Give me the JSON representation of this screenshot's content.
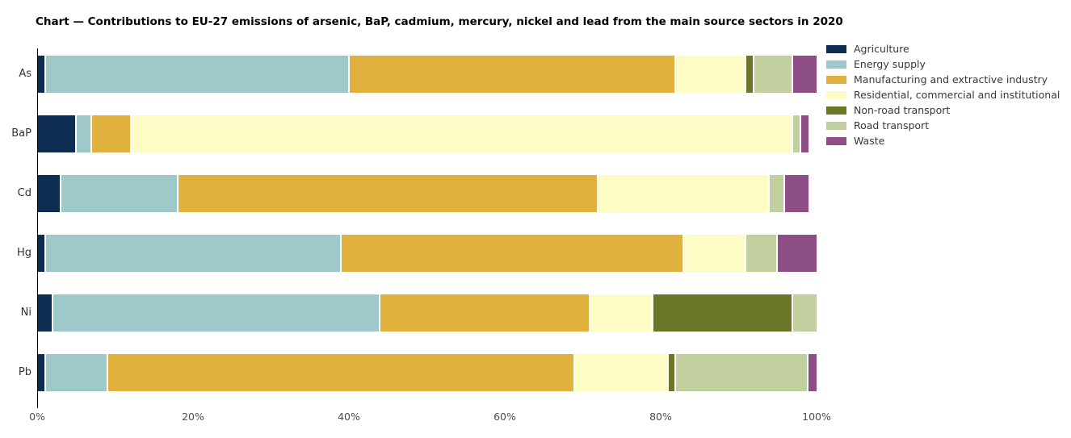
{
  "chart_data": {
    "type": "bar",
    "orientation": "horizontal",
    "stacked": true,
    "title": "Chart — Contributions to EU-27 emissions of arsenic, BaP, cadmium, mercury, nickel and lead from the main source sectors in 2020",
    "categories": [
      "As",
      "BaP",
      "Cd",
      "Hg",
      "Ni",
      "Pb"
    ],
    "unit": "percent",
    "xlim": [
      0,
      100
    ],
    "x_ticks": [
      "0%",
      "20%",
      "40%",
      "60%",
      "80%",
      "100%"
    ],
    "grid": false,
    "legend_position": "top-right",
    "axis_color": "#000000",
    "series": [
      {
        "name": "Agriculture",
        "color": "#0d2e52",
        "values": [
          1,
          5,
          3,
          1,
          2,
          1
        ]
      },
      {
        "name": "Energy supply",
        "color": "#9fc8ca",
        "values": [
          39,
          2,
          15,
          38,
          42,
          8
        ]
      },
      {
        "name": "Manufacturing and extractive industry",
        "color": "#e0b23d",
        "values": [
          42,
          5,
          54,
          44,
          27,
          60
        ]
      },
      {
        "name": "Residential, commercial and institutional",
        "color": "#fdfcc5",
        "values": [
          9,
          85,
          22,
          8,
          8,
          12
        ]
      },
      {
        "name": "Non-road transport",
        "color": "#6b7626",
        "values": [
          1,
          0,
          0,
          0,
          18,
          1
        ]
      },
      {
        "name": "Road transport",
        "color": "#c1d09e",
        "values": [
          5,
          1,
          2,
          4,
          3,
          17
        ]
      },
      {
        "name": "Waste",
        "color": "#8d4d85",
        "values": [
          3,
          1,
          3,
          5,
          0,
          1
        ]
      }
    ]
  }
}
